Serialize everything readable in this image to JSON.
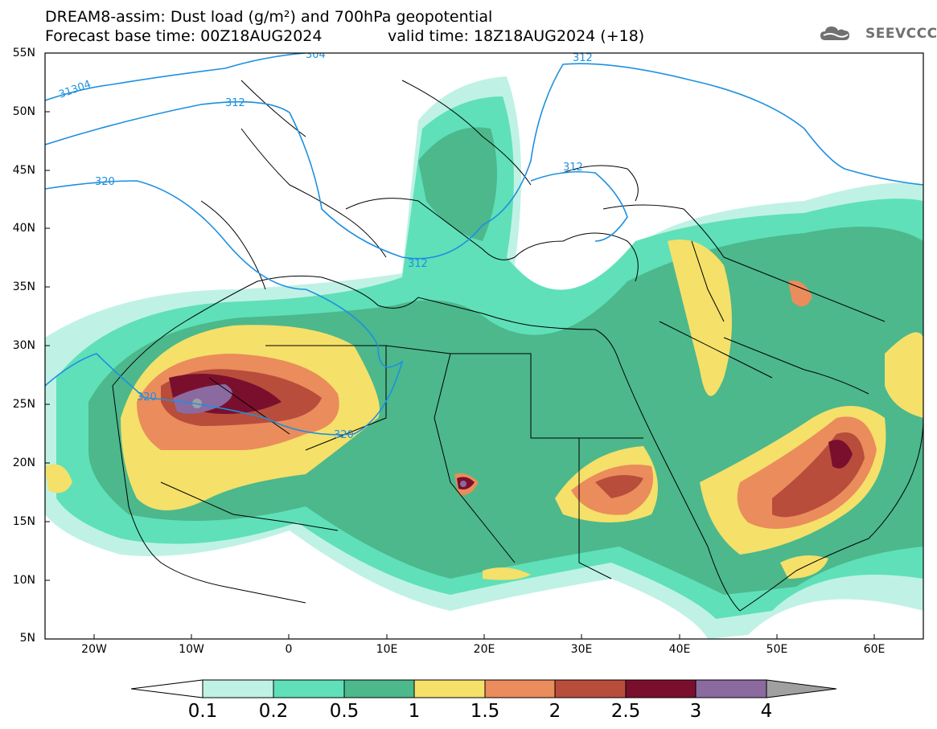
{
  "header": {
    "title_line": "DREAM8-assim: Dust load (g/m²) and 700hPa geopotential",
    "base_time_line": "Forecast base time: 00Z18AUG2024",
    "valid_time_line": "valid time: 18Z18AUG2024 (+18)"
  },
  "logo": {
    "text": "SEEVCCC",
    "icon": "cloud-logo-icon"
  },
  "axes": {
    "lat_labels": [
      "55N",
      "50N",
      "45N",
      "40N",
      "35N",
      "30N",
      "25N",
      "20N",
      "15N",
      "10N",
      "5N"
    ],
    "lon_labels": [
      "20W",
      "10W",
      "0",
      "10E",
      "20E",
      "30E",
      "40E",
      "50E",
      "60E"
    ]
  },
  "contours": {
    "labels": [
      "304",
      "31304",
      "312",
      "312",
      "312",
      "312",
      "320",
      "320",
      "320"
    ]
  },
  "colorbar": {
    "ticks": [
      "0.1",
      "0.2",
      "0.5",
      "1",
      "1.5",
      "2",
      "2.5",
      "3",
      "4"
    ],
    "colors": [
      "#bff2e4",
      "#5fe0b8",
      "#4cb88c",
      "#f5e06a",
      "#eb8c5c",
      "#b84d3c",
      "#7a0f2d",
      "#8b6aa0",
      "#a0a0a0"
    ]
  },
  "colors": {
    "contour_line": "#1e90e0",
    "coastline": "#000000"
  }
}
